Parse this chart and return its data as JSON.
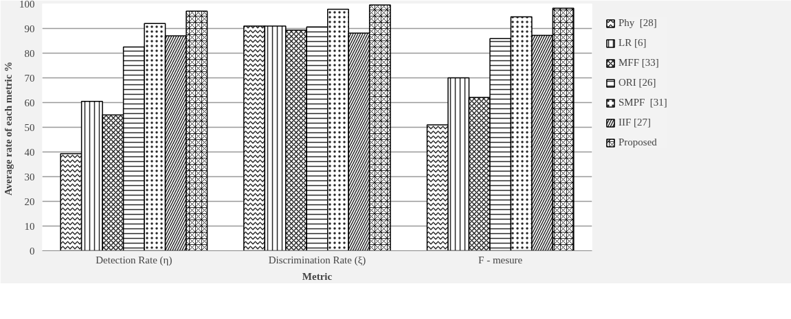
{
  "chart_data": {
    "type": "bar",
    "xlabel": "Metric",
    "ylabel": "Average rate of each metric  %",
    "categories": [
      "Detection Rate (η)",
      "Discrimination Rate (ξ)",
      "F - mesure"
    ],
    "series": [
      {
        "name": "Phy  [28]",
        "color": "#ffffff",
        "values": [
          39.3,
          91,
          51
        ]
      },
      {
        "name": "LR [6]",
        "color": "#ffffff",
        "values": [
          60.5,
          91,
          70
        ]
      },
      {
        "name": "MFF [33]",
        "color": "#ffffff",
        "values": [
          55,
          89.3,
          62.1
        ]
      },
      {
        "name": "ORI [26]",
        "color": "#ffffff",
        "values": [
          82.5,
          90.6,
          85.9
        ]
      },
      {
        "name": "SMPF  [31]",
        "color": "#ffffff",
        "values": [
          92,
          97.8,
          94.7
        ]
      },
      {
        "name": "IIF [27]",
        "color": "#ffffff",
        "values": [
          87,
          88.1,
          87.2
        ]
      },
      {
        "name": "Proposed",
        "color": "#ffffff",
        "values": [
          97,
          99.5,
          98.2
        ]
      }
    ],
    "ylim": [
      0,
      100
    ],
    "yticks": [
      0,
      10,
      20,
      30,
      40,
      50,
      60,
      70,
      80,
      90,
      100
    ],
    "grid": "y",
    "legend": "right"
  }
}
